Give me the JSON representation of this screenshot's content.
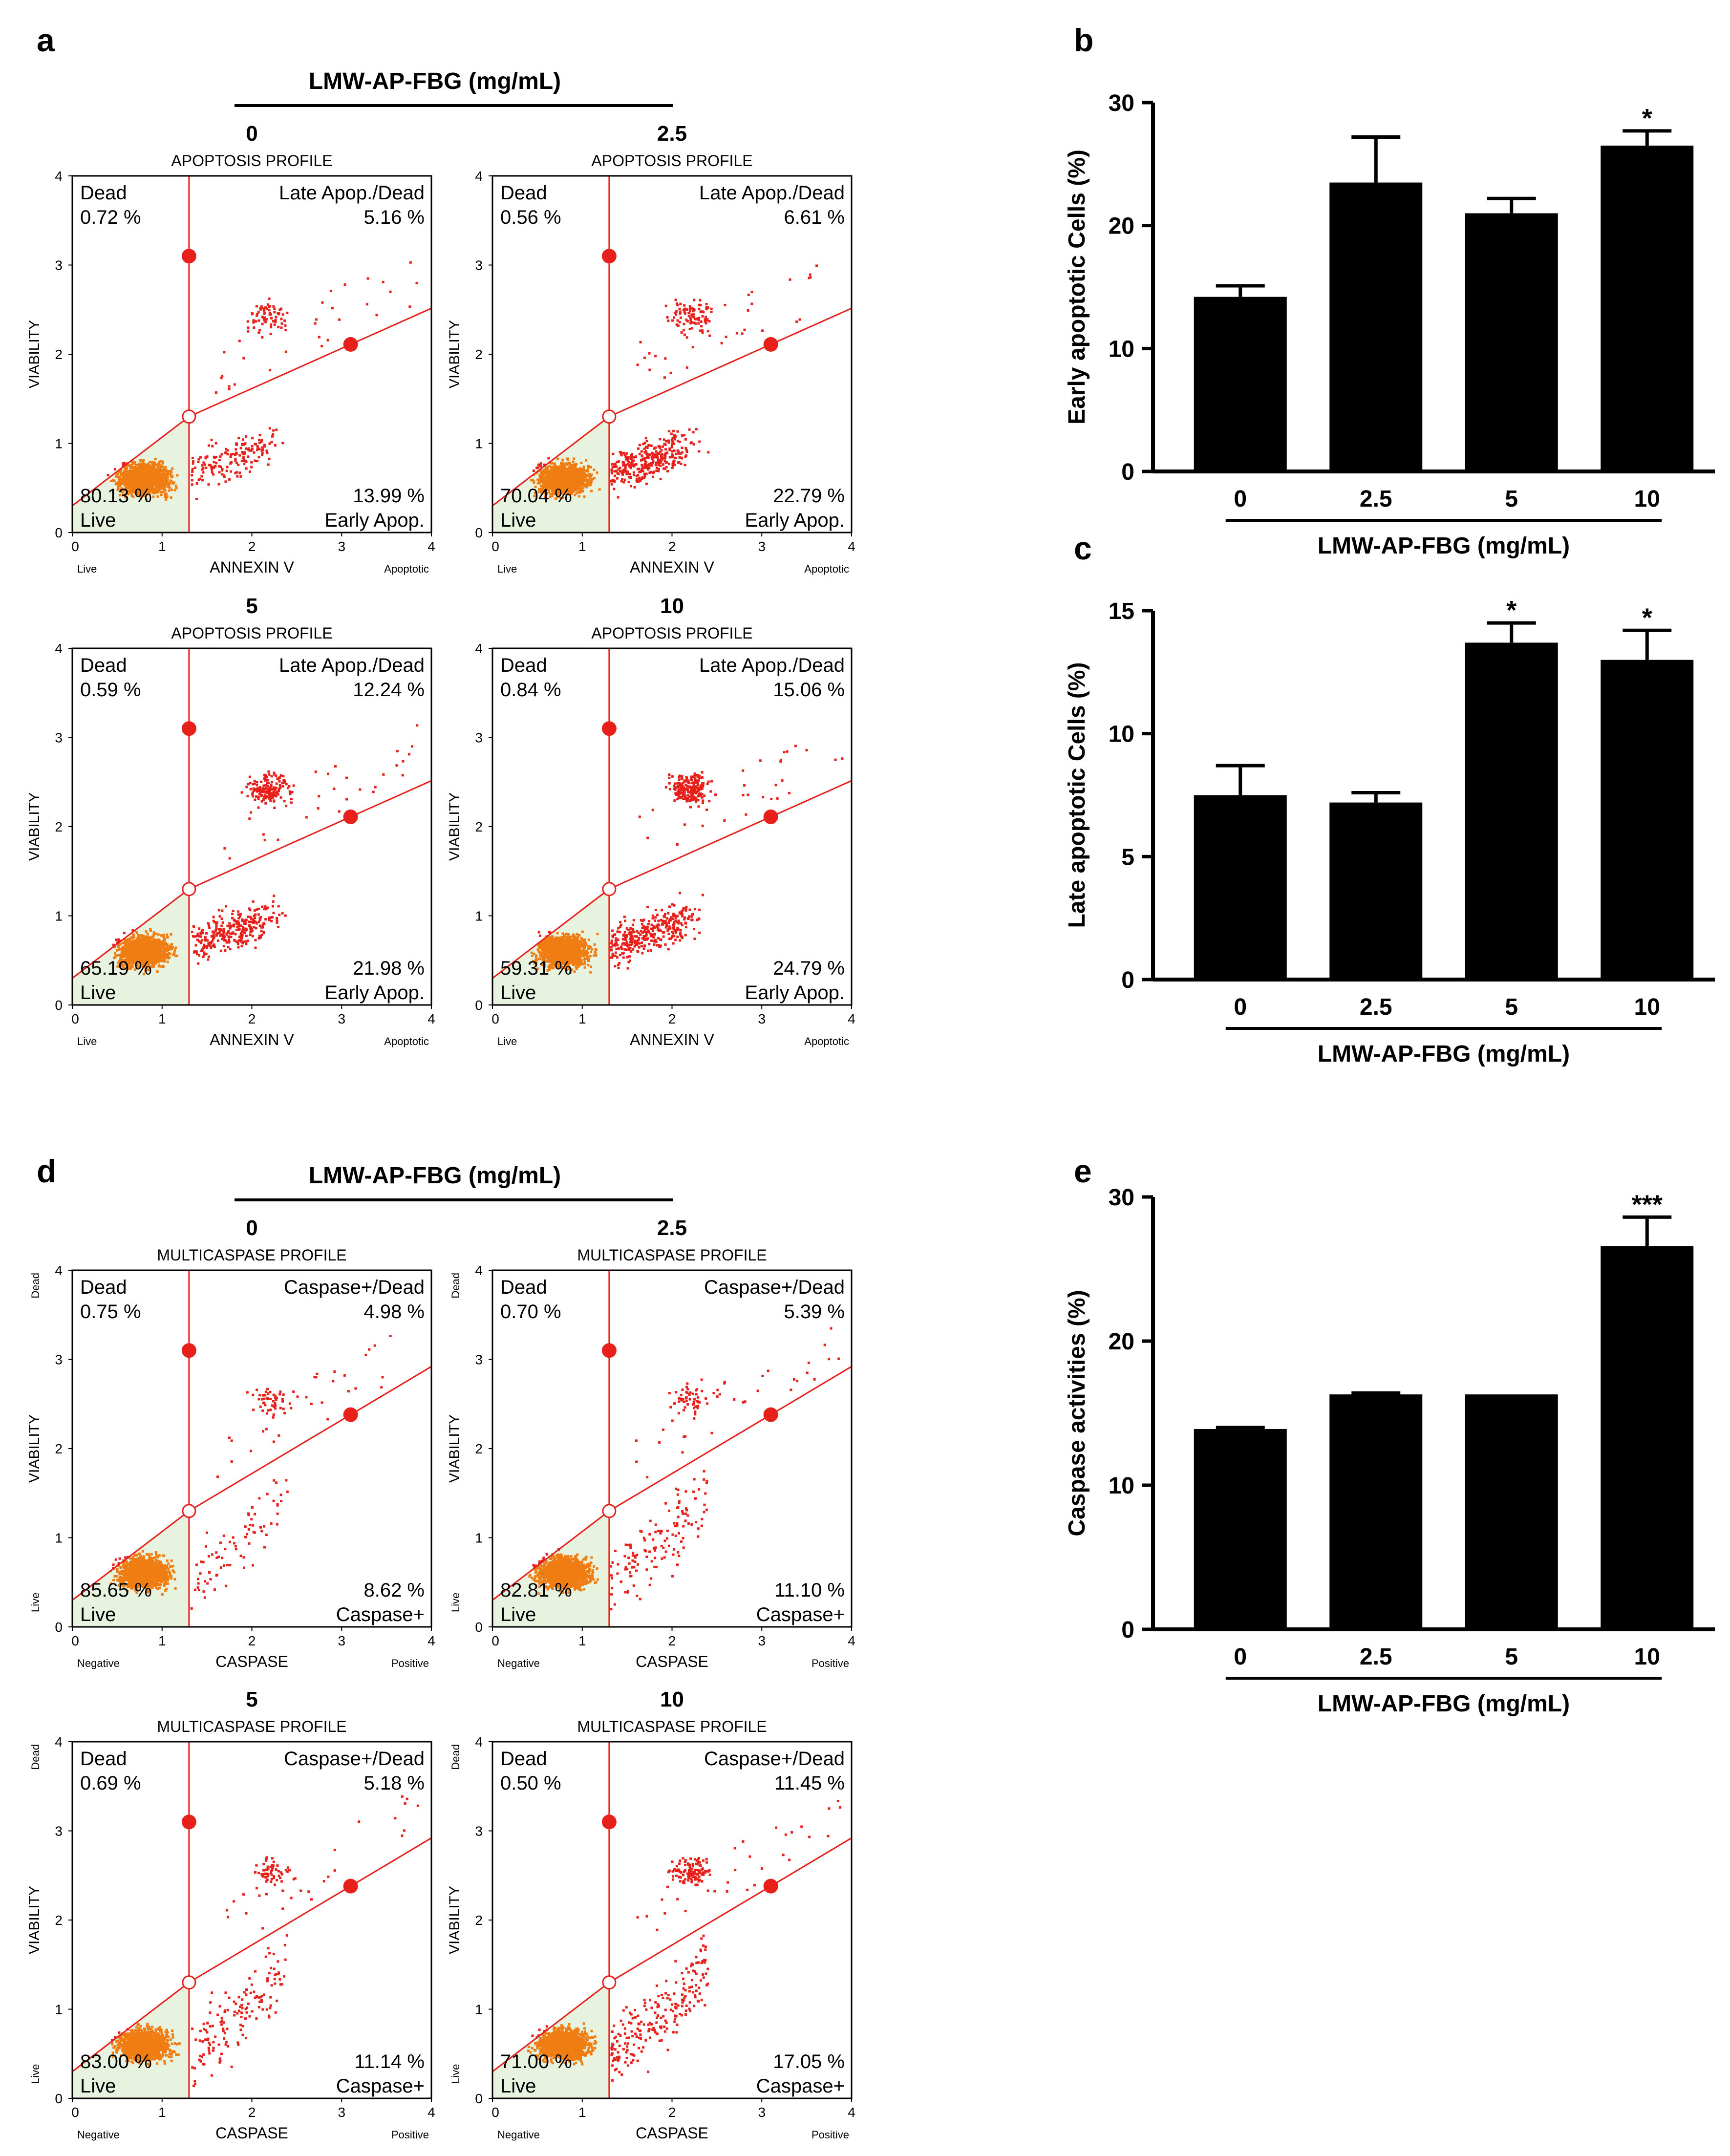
{
  "panel_letters": {
    "a": "a",
    "b": "b",
    "c": "c",
    "d": "d",
    "e": "e"
  },
  "group_header": "LMW-AP-FBG (mg/mL)",
  "colors": {
    "dot": "#e8201b",
    "live": "#f07d12",
    "gate_fill": "#e7f2df",
    "bar": "#000000"
  },
  "apoptosis": {
    "profile_title": "APOPTOSIS PROFILE",
    "ylabel": "VIABILITY",
    "xlabel": "ANNEXIN V",
    "x_left": "Live",
    "x_right": "Apoptotic",
    "tr_label": "Late Apop./Dead",
    "br_label": "Early Apop.",
    "tl_label": "Dead",
    "bl_label": "Live",
    "axis_ticks": [
      "0",
      "1",
      "2",
      "3",
      "4"
    ],
    "plots": [
      {
        "conc": "0",
        "dead": "0.72 %",
        "late": "5.16 %",
        "live": "80.13 %",
        "early": "13.99 %"
      },
      {
        "conc": "2.5",
        "dead": "0.56 %",
        "late": "6.61 %",
        "live": "70.04 %",
        "early": "22.79 %"
      },
      {
        "conc": "5",
        "dead": "0.59 %",
        "late": "12.24 %",
        "live": "65.19 %",
        "early": "21.98 %"
      },
      {
        "conc": "10",
        "dead": "0.84 %",
        "late": "15.06 %",
        "live": "59.31 %",
        "early": "24.79 %"
      }
    ]
  },
  "caspase": {
    "profile_title": "MULTICASPASE PROFILE",
    "ylabel": "VIABILITY",
    "xlabel": "CASPASE",
    "x_left": "Negative",
    "x_right": "Positive",
    "y_top": "Dead",
    "y_bottom": "Live",
    "tr_label": "Caspase+/Dead",
    "br_label": "Caspase+",
    "tl_label": "Dead",
    "bl_label": "Live",
    "axis_ticks": [
      "0",
      "1",
      "2",
      "3",
      "4"
    ],
    "plots": [
      {
        "conc": "0",
        "dead": "0.75 %",
        "late": "4.98 %",
        "live": "85.65 %",
        "early": "8.62 %"
      },
      {
        "conc": "2.5",
        "dead": "0.70 %",
        "late": "5.39 %",
        "live": "82.81 %",
        "early": "11.10 %"
      },
      {
        "conc": "5",
        "dead": "0.69 %",
        "late": "5.18 %",
        "live": "83.00 %",
        "early": "11.14 %"
      },
      {
        "conc": "10",
        "dead": "0.50 %",
        "late": "11.45 %",
        "live": "71.00 %",
        "early": "17.05 %"
      }
    ]
  },
  "chart_data": [
    {
      "id": "b",
      "type": "bar",
      "categories": [
        "0",
        "2.5",
        "5",
        "10"
      ],
      "values": [
        14.2,
        23.5,
        21.0,
        26.5
      ],
      "errors": [
        0.9,
        3.7,
        1.2,
        1.2
      ],
      "sig": [
        "",
        "",
        "",
        "*"
      ],
      "ylabel": "Early apoptotic Cells (%)",
      "xlabel": "LMW-AP-FBG (mg/mL)",
      "ylim": [
        0,
        30
      ],
      "yticks": [
        "0",
        "10",
        "20",
        "30"
      ]
    },
    {
      "id": "c",
      "type": "bar",
      "categories": [
        "0",
        "2.5",
        "5",
        "10"
      ],
      "values": [
        7.5,
        7.2,
        13.7,
        13.0
      ],
      "errors": [
        1.2,
        0.4,
        0.8,
        1.2
      ],
      "sig": [
        "",
        "",
        "*",
        "*"
      ],
      "ylabel": "Late apoptotic Cells (%)",
      "xlabel": "LMW-AP-FBG (mg/mL)",
      "ylim": [
        0,
        15
      ],
      "yticks": [
        "0",
        "5",
        "10",
        "15"
      ]
    },
    {
      "id": "e",
      "type": "bar",
      "categories": [
        "0",
        "2.5",
        "5",
        "10"
      ],
      "values": [
        13.9,
        16.3,
        16.3,
        26.6
      ],
      "errors": [
        0.1,
        0.1,
        0.05,
        2.0
      ],
      "sig": [
        "",
        "",
        "",
        "***"
      ],
      "ylabel": "Caspase activities (%)",
      "xlabel": "LMW-AP-FBG (mg/mL)",
      "ylim": [
        0,
        30
      ],
      "yticks": [
        "0",
        "10",
        "20",
        "30"
      ]
    }
  ]
}
